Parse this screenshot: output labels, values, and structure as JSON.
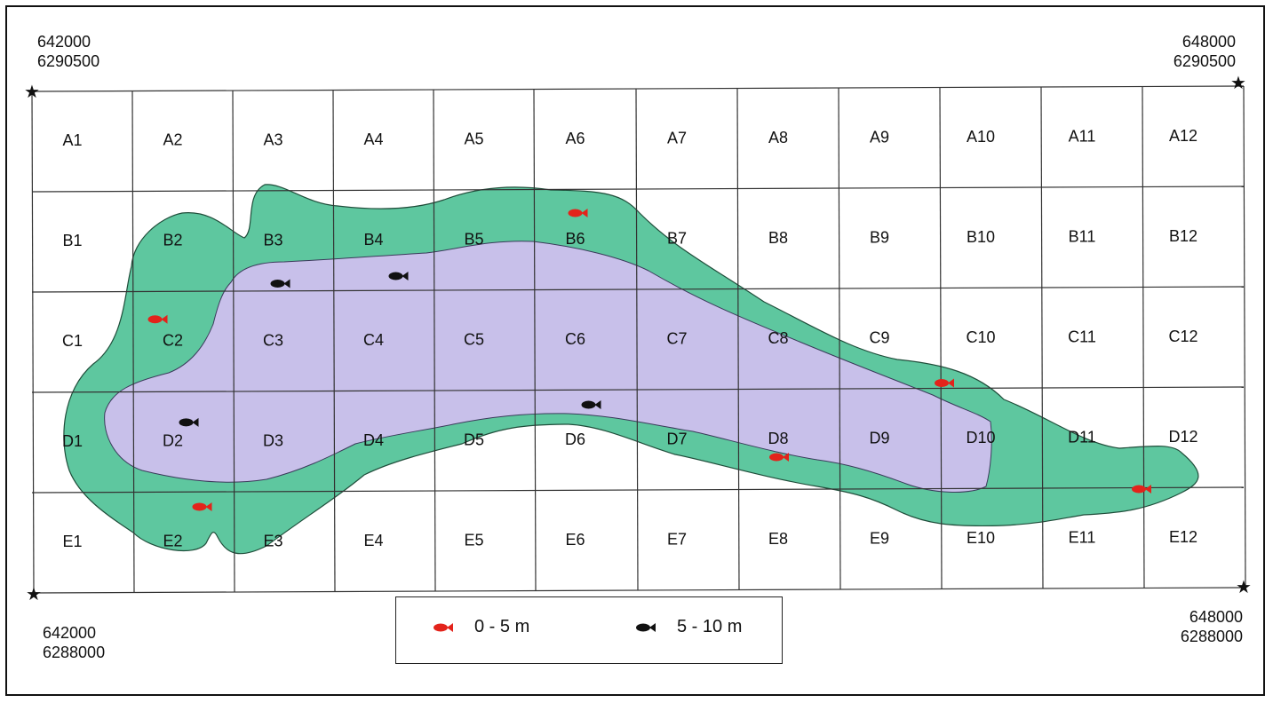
{
  "corners": {
    "top_left": {
      "easting": "642000",
      "northing": "6290500"
    },
    "top_right": {
      "easting": "648000",
      "northing": "6290500"
    },
    "bottom_left": {
      "easting": "642000",
      "northing": "6288000"
    },
    "bottom_right": {
      "easting": "648000",
      "northing": "6288000"
    }
  },
  "grid": {
    "rows": [
      "A",
      "B",
      "C",
      "D",
      "E"
    ],
    "columns": [
      1,
      2,
      3,
      4,
      5,
      6,
      7,
      8,
      9,
      10,
      11,
      12
    ]
  },
  "colors": {
    "shallow_zone": "#5ec79f",
    "deep_zone": "#c8c0ea",
    "fish_shallow": "#e3231b",
    "fish_deep": "#111111",
    "grid_line": "#333333"
  },
  "fish_markers": [
    {
      "depth_class": "0-5",
      "cell": "B6"
    },
    {
      "depth_class": "0-5",
      "cell": "C2"
    },
    {
      "depth_class": "0-5",
      "cell": "C9"
    },
    {
      "depth_class": "0-5",
      "cell": "D8"
    },
    {
      "depth_class": "0-5",
      "cell": "E2"
    },
    {
      "depth_class": "0-5",
      "cell": "E12"
    },
    {
      "depth_class": "5-10",
      "cell": "B3"
    },
    {
      "depth_class": "5-10",
      "cell": "B4"
    },
    {
      "depth_class": "5-10",
      "cell": "D6"
    },
    {
      "depth_class": "5-10",
      "cell": "D2"
    }
  ],
  "legend": {
    "items": [
      {
        "label": "0 - 5 m",
        "icon": "fish-icon-red"
      },
      {
        "label": "5 - 10 m",
        "icon": "fish-icon-black"
      }
    ]
  }
}
